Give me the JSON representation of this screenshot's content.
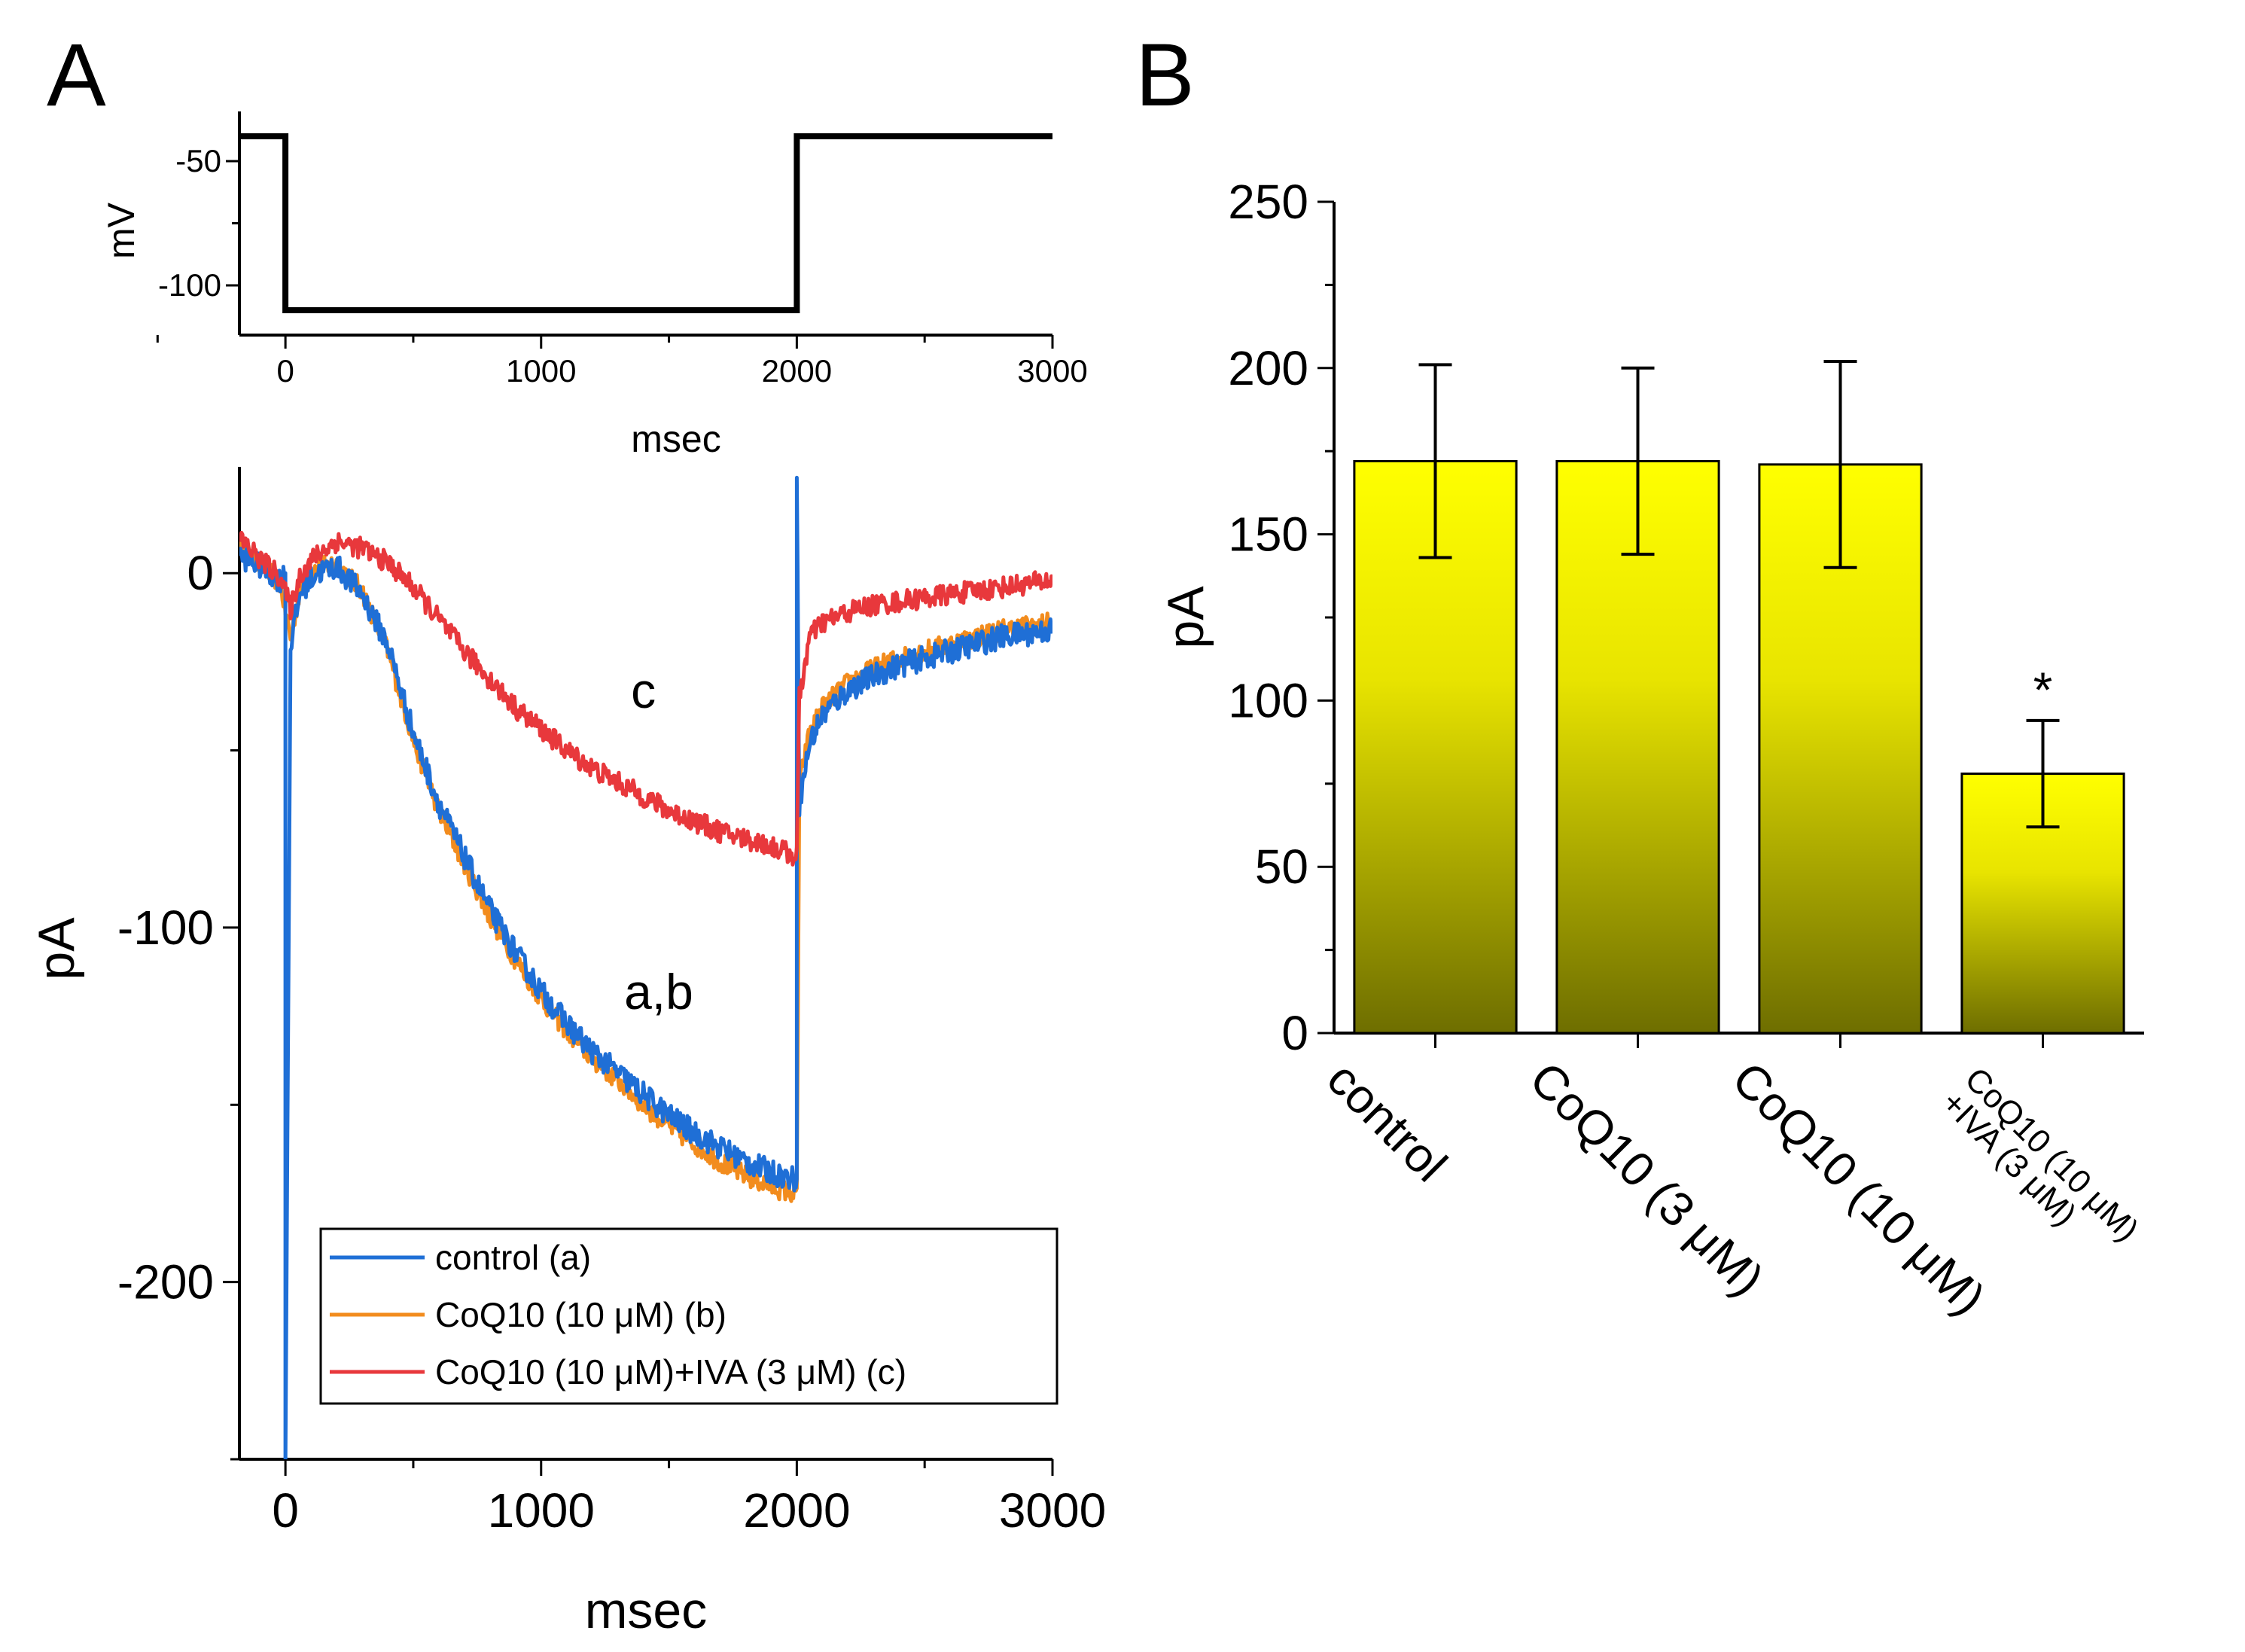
{
  "panels": {
    "a": "A",
    "b": "B"
  },
  "chart_data": [
    {
      "id": "voltage_protocol",
      "type": "line",
      "title": "",
      "xlabel": "msec",
      "ylabel": "mV",
      "xlim": [
        -180,
        3000
      ],
      "ylim": [
        -120,
        -30
      ],
      "xticks": [
        0,
        1000,
        2000,
        3000
      ],
      "xtick_labels": [
        "0",
        "1000",
        "2000",
        "3000"
      ],
      "yticks": [
        -50,
        -100
      ],
      "ytick_labels": [
        "-50",
        "-100"
      ],
      "series": [
        {
          "name": "command voltage",
          "color": "#000000",
          "x": [
            -180,
            0,
            0,
            2000,
            2000,
            3000
          ],
          "y": [
            -40,
            -40,
            -110,
            -110,
            -40,
            -40
          ]
        }
      ]
    },
    {
      "id": "current_traces",
      "type": "line",
      "title": "",
      "xlabel": "msec",
      "ylabel": "pA",
      "xlim": [
        -180,
        3000
      ],
      "ylim": [
        -250,
        30
      ],
      "xticks": [
        0,
        1000,
        2000,
        3000
      ],
      "xtick_labels": [
        "0",
        "1000",
        "2000",
        "3000"
      ],
      "yticks": [
        0,
        -100,
        -200
      ],
      "ytick_labels": [
        "0",
        "-100",
        "-200"
      ],
      "legend": "bottom-right",
      "annotations": [
        {
          "text": "c",
          "x": 1400,
          "y": -38
        },
        {
          "text": "a,b",
          "x": 1460,
          "y": -123
        }
      ],
      "series": [
        {
          "name": "control (a)",
          "color": "#1f6fd6",
          "noise": 3.5,
          "x": [
            -180,
            -100,
            -20,
            0,
            0,
            20,
            60,
            120,
            200,
            300,
            400,
            500,
            600,
            700,
            800,
            900,
            1000,
            1100,
            1200,
            1300,
            1400,
            1500,
            1600,
            1700,
            1800,
            1900,
            1990,
            2000,
            2000,
            2010,
            2050,
            2100,
            2200,
            2300,
            2400,
            2500,
            2600,
            2700,
            2800,
            2900,
            3000
          ],
          "y": [
            5,
            2,
            -2,
            0,
            -250,
            -20,
            -5,
            0,
            2,
            -6,
            -20,
            -45,
            -65,
            -80,
            -95,
            -107,
            -118,
            -127,
            -135,
            -141,
            -147,
            -153,
            -158,
            -162,
            -166,
            -169,
            -171,
            -171,
            30,
            -65,
            -48,
            -40,
            -33,
            -29,
            -26,
            -24,
            -22,
            -20,
            -18,
            -17,
            -16
          ]
        },
        {
          "name": "CoQ10 (10 μM) (b)",
          "color": "#f28c1e",
          "noise": 3.0,
          "x": [
            -180,
            -100,
            -20,
            20,
            60,
            120,
            200,
            300,
            400,
            500,
            600,
            700,
            800,
            900,
            1000,
            1100,
            1200,
            1300,
            1400,
            1500,
            1600,
            1700,
            1800,
            1900,
            1990,
            2000,
            2010,
            2050,
            2100,
            2200,
            2300,
            2400,
            2500,
            2600,
            2700,
            2800,
            2900,
            3000
          ],
          "y": [
            8,
            3,
            -3,
            -18,
            -4,
            1,
            3,
            -5,
            -22,
            -47,
            -67,
            -82,
            -97,
            -109,
            -120,
            -129,
            -137,
            -143,
            -150,
            -156,
            -161,
            -166,
            -170,
            -173,
            -175,
            -175,
            -60,
            -45,
            -38,
            -31,
            -27,
            -24,
            -22,
            -20,
            -18,
            -16,
            -15,
            -14
          ]
        },
        {
          "name": "CoQ10 (10 μM)+IVA (3 μM) (c)",
          "color": "#e8383c",
          "noise": 3.0,
          "x": [
            -180,
            -100,
            -20,
            20,
            60,
            120,
            200,
            300,
            400,
            500,
            600,
            700,
            800,
            900,
            1000,
            1100,
            1200,
            1300,
            1400,
            1500,
            1600,
            1700,
            1800,
            1900,
            2000,
            2010,
            2050,
            2100,
            2200,
            2300,
            2400,
            2500,
            2600,
            2700,
            2800,
            2900,
            3000
          ],
          "y": [
            10,
            4,
            -1,
            -10,
            0,
            5,
            9,
            7,
            3,
            -4,
            -13,
            -22,
            -30,
            -38,
            -44,
            -50,
            -55,
            -59,
            -63,
            -67,
            -70,
            -73,
            -75,
            -77,
            -80,
            -35,
            -18,
            -14,
            -11,
            -9,
            -8,
            -7,
            -6,
            -5,
            -4,
            -3,
            -2
          ]
        }
      ]
    },
    {
      "id": "bar_summary",
      "type": "bar",
      "title": "",
      "xlabel": "",
      "ylabel": "pA",
      "ylim": [
        0,
        250
      ],
      "yticks": [
        0,
        50,
        100,
        150,
        200,
        250
      ],
      "ytick_labels": [
        "0",
        "50",
        "100",
        "150",
        "200",
        "250"
      ],
      "categories": [
        "control",
        "CoQ10 (3 μM)",
        "CoQ10 (10 μM)",
        "CoQ10 (10 μM)\n+IVA (3 μM)"
      ],
      "values": [
        172,
        172,
        171,
        78
      ],
      "errors": [
        29,
        28,
        31,
        16
      ],
      "significance": [
        "",
        "",
        "",
        "*"
      ],
      "bar_gradient": [
        "#ffff00",
        "#6e6e00"
      ]
    }
  ]
}
